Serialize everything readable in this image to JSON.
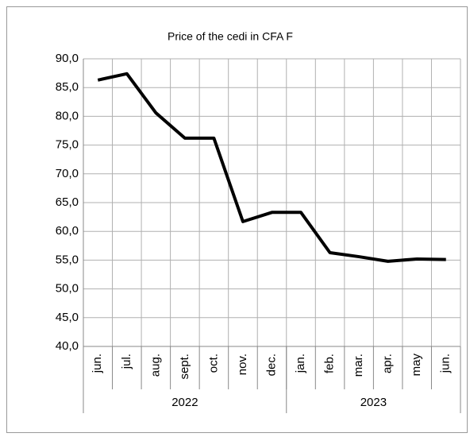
{
  "chart_data": {
    "type": "line",
    "title": "Price of the cedi in CFA F",
    "categories": [
      "jun.",
      "jul.",
      "aug.",
      "sept.",
      "oct.",
      "nov.",
      "dec.",
      "jan.",
      "feb.",
      "mar.",
      "apr.",
      "may",
      "jun."
    ],
    "groups": [
      {
        "label": "2022",
        "count": 7
      },
      {
        "label": "2023",
        "count": 6
      }
    ],
    "series": [
      {
        "name": "Price of the cedi in CFA F",
        "color": "#000000",
        "values": [
          86.3,
          87.4,
          80.6,
          76.2,
          76.2,
          61.7,
          63.3,
          63.3,
          56.3,
          55.6,
          54.8,
          55.2,
          55.1
        ]
      }
    ],
    "ylim": [
      40,
      90
    ],
    "yticks": [
      {
        "value": 40,
        "label": "40,0"
      },
      {
        "value": 45,
        "label": "45,0"
      },
      {
        "value": 50,
        "label": "50,0"
      },
      {
        "value": 55,
        "label": "55,0"
      },
      {
        "value": 60,
        "label": "60,0"
      },
      {
        "value": 65,
        "label": "65,0"
      },
      {
        "value": 70,
        "label": "70,0"
      },
      {
        "value": 75,
        "label": "75,0"
      },
      {
        "value": 80,
        "label": "80,0"
      },
      {
        "value": 85,
        "label": "85,0"
      },
      {
        "value": 90,
        "label": "90,0"
      }
    ],
    "grid": true
  }
}
